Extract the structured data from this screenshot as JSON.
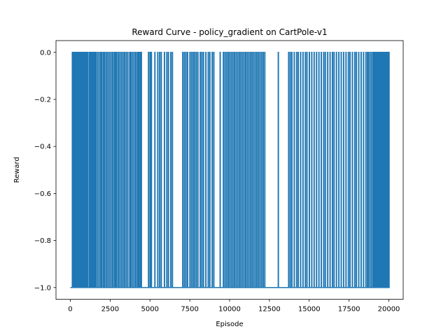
{
  "chart_data": {
    "type": "line",
    "title": "Reward Curve - policy_gradient on CartPole-v1",
    "xlabel": "Episode",
    "ylabel": "Reward",
    "xlim": [
      -900,
      20900
    ],
    "ylim": [
      -1.05,
      0.05
    ],
    "x_ticks": [
      0,
      2500,
      5000,
      7500,
      10000,
      12500,
      15000,
      17500,
      20000
    ],
    "x_tick_labels": [
      "0",
      "2500",
      "5000",
      "7500",
      "10000",
      "12500",
      "15000",
      "17500",
      "20000"
    ],
    "y_ticks": [
      0.0,
      -0.2,
      -0.4,
      -0.6,
      -0.8,
      -1.0
    ],
    "y_tick_labels": [
      "0.0",
      "−0.2",
      "−0.4",
      "−0.6",
      "−0.8",
      "−1.0"
    ],
    "grid": false,
    "line_color": "#1f77b4",
    "series": [
      {
        "baseline": -1.0,
        "peak": 0.0,
        "x_range": [
          0,
          20000
        ],
        "spike_episodes": [
          120,
          180,
          240,
          300,
          380,
          420,
          500,
          580,
          640,
          720,
          800,
          880,
          940,
          1020,
          1100,
          1200,
          1280,
          1360,
          1440,
          1520,
          1600,
          1700,
          1800,
          1900,
          1980,
          2080,
          2150,
          2250,
          2350,
          2450,
          2550,
          2650,
          2750,
          2820,
          2900,
          3000,
          3100,
          3200,
          3300,
          3400,
          3500,
          3600,
          3720,
          3800,
          3900,
          4000,
          4100,
          4200,
          4280,
          4370,
          4450,
          4900,
          5000,
          5080,
          5300,
          5480,
          5600,
          5700,
          5900,
          6050,
          6150,
          6300,
          6400,
          7050,
          7150,
          7250,
          7350,
          7500,
          7600,
          7700,
          7800,
          7900,
          8000,
          8150,
          8250,
          8350,
          8500,
          8650,
          8750,
          8900,
          9000,
          9400,
          9600,
          9700,
          9800,
          9900,
          10000,
          10100,
          10200,
          10300,
          10400,
          10500,
          10600,
          10700,
          10800,
          10900,
          11000,
          11100,
          11200,
          11300,
          11400,
          11500,
          11600,
          11700,
          11800,
          11900,
          12000,
          12100,
          12200,
          13050,
          13700,
          13800,
          13900,
          14050,
          14200,
          14300,
          14450,
          14600,
          14750,
          14850,
          15000,
          15150,
          15300,
          15450,
          15600,
          15750,
          15900,
          16000,
          16150,
          16300,
          16450,
          16550,
          16700,
          16850,
          17000,
          17150,
          17300,
          17450,
          17550,
          17700,
          17850,
          17950,
          18100,
          18250,
          18400,
          18550,
          18650,
          18700,
          18800,
          18900,
          19000,
          19080,
          19150,
          19230,
          19300,
          19380,
          19450,
          19530,
          19600,
          19680,
          19750,
          19830,
          19900,
          19960,
          20000
        ]
      }
    ]
  }
}
